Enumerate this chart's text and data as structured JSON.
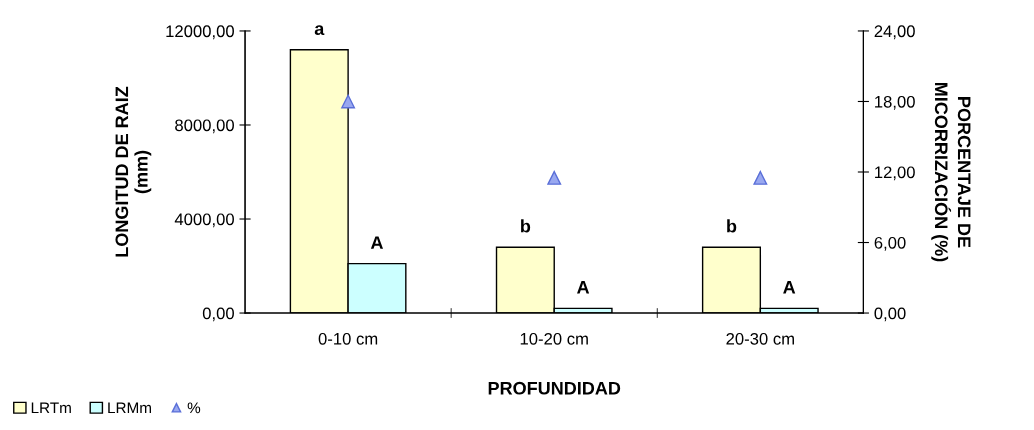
{
  "chart_data": {
    "type": "bar",
    "xlabel": "PROFUNDIDAD",
    "ylabel": "LONGITUD DE RAIZ\n(mm)",
    "y2label": "PORCENTAJE DE\nMICORRIZACIÓN (%)",
    "categories": [
      "0-10 cm",
      "10-20 cm",
      "20-30 cm"
    ],
    "series": [
      {
        "name": "LRTm",
        "color": "#ffffcc",
        "values": [
          11200,
          2800,
          2800
        ],
        "value_labels": [
          "a",
          "b",
          "b"
        ]
      },
      {
        "name": "LRMm",
        "color": "#ccffff",
        "values": [
          2100,
          200,
          200
        ],
        "value_labels": [
          "A",
          "A",
          "A"
        ]
      },
      {
        "name": "%",
        "type": "scatter",
        "marker": "triangle",
        "color": "#99a8f0",
        "axis": "y2",
        "values": [
          18,
          11.5,
          11.5
        ]
      }
    ],
    "ylim": [
      0,
      12000
    ],
    "yticks": [
      {
        "value": 0,
        "label": "0,00"
      },
      {
        "value": 4000,
        "label": "4000,00"
      },
      {
        "value": 8000,
        "label": "8000,00"
      },
      {
        "value": 12000,
        "label": "12000,00"
      }
    ],
    "y2lim": [
      0,
      24
    ],
    "y2ticks": [
      {
        "value": 0,
        "label": "0,00"
      },
      {
        "value": 6,
        "label": "6,00"
      },
      {
        "value": 12,
        "label": "12,00"
      },
      {
        "value": 18,
        "label": "18,00"
      },
      {
        "value": 24,
        "label": "24,00"
      }
    ],
    "legend": "bottom left",
    "grid": false
  }
}
